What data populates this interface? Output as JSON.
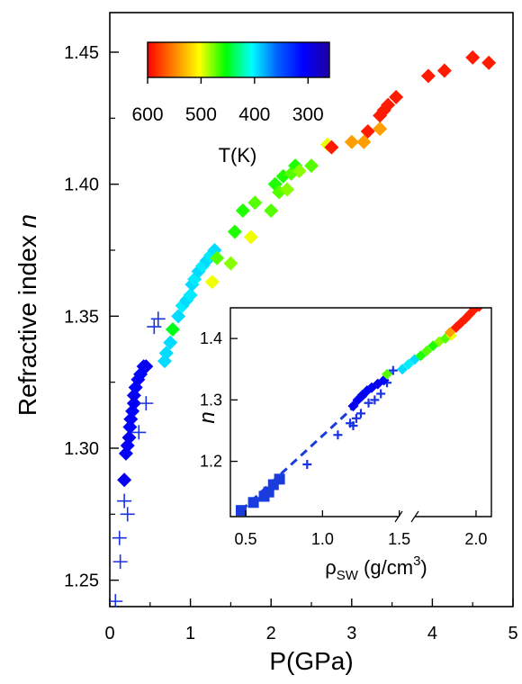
{
  "chart_data": [
    {
      "type": "scatter",
      "xlabel": "P(GPa)",
      "ylabel_main": "Refractive index ",
      "ylabel_italic": "n",
      "xlim": [
        0,
        5
      ],
      "ylim": [
        1.24,
        1.465
      ],
      "x_ticks": [
        "0",
        "1",
        "2",
        "3",
        "4",
        "5"
      ],
      "y_ticks": [
        "1.25",
        "1.30",
        "1.35",
        "1.40",
        "1.45"
      ],
      "colorbar": {
        "label": "T(K)",
        "ticks": [
          "600",
          "500",
          "400",
          "300"
        ],
        "tick_values": [
          600,
          500,
          400,
          300
        ],
        "range": [
          600,
          260
        ],
        "colors": [
          "#ff0000",
          "#ff8000",
          "#ffff00",
          "#00ff00",
          "#00ffff",
          "#0060ff",
          "#0000ff",
          "#2000a0"
        ]
      },
      "series": [
        {
          "marker": "diamond",
          "points": [
            {
              "x": 0.18,
              "y": 1.288,
              "t": 300
            },
            {
              "x": 0.2,
              "y": 1.298,
              "t": 305
            },
            {
              "x": 0.22,
              "y": 1.301,
              "t": 305
            },
            {
              "x": 0.24,
              "y": 1.304,
              "t": 300
            },
            {
              "x": 0.25,
              "y": 1.308,
              "t": 310
            },
            {
              "x": 0.26,
              "y": 1.311,
              "t": 305
            },
            {
              "x": 0.28,
              "y": 1.314,
              "t": 310
            },
            {
              "x": 0.3,
              "y": 1.317,
              "t": 305
            },
            {
              "x": 0.3,
              "y": 1.32,
              "t": 300
            },
            {
              "x": 0.32,
              "y": 1.323,
              "t": 310
            },
            {
              "x": 0.35,
              "y": 1.326,
              "t": 305
            },
            {
              "x": 0.38,
              "y": 1.328,
              "t": 310
            },
            {
              "x": 0.42,
              "y": 1.331,
              "t": 305
            },
            {
              "x": 0.45,
              "y": 1.331,
              "t": 300
            },
            {
              "x": 0.68,
              "y": 1.333,
              "t": 395
            },
            {
              "x": 0.7,
              "y": 1.336,
              "t": 395
            },
            {
              "x": 0.75,
              "y": 1.34,
              "t": 395
            },
            {
              "x": 0.78,
              "y": 1.345,
              "t": 450
            },
            {
              "x": 0.85,
              "y": 1.35,
              "t": 395
            },
            {
              "x": 0.9,
              "y": 1.354,
              "t": 400
            },
            {
              "x": 0.95,
              "y": 1.356,
              "t": 395
            },
            {
              "x": 1.0,
              "y": 1.358,
              "t": 400
            },
            {
              "x": 1.02,
              "y": 1.362,
              "t": 395
            },
            {
              "x": 1.05,
              "y": 1.364,
              "t": 400
            },
            {
              "x": 1.1,
              "y": 1.367,
              "t": 395
            },
            {
              "x": 1.15,
              "y": 1.369,
              "t": 400
            },
            {
              "x": 1.2,
              "y": 1.371,
              "t": 395
            },
            {
              "x": 1.25,
              "y": 1.373,
              "t": 400
            },
            {
              "x": 1.3,
              "y": 1.375,
              "t": 395
            },
            {
              "x": 1.27,
              "y": 1.363,
              "t": 500
            },
            {
              "x": 1.33,
              "y": 1.372,
              "t": 470
            },
            {
              "x": 1.5,
              "y": 1.37,
              "t": 480
            },
            {
              "x": 1.55,
              "y": 1.382,
              "t": 460
            },
            {
              "x": 1.65,
              "y": 1.39,
              "t": 460
            },
            {
              "x": 1.8,
              "y": 1.393,
              "t": 470
            },
            {
              "x": 1.75,
              "y": 1.38,
              "t": 500
            },
            {
              "x": 2.0,
              "y": 1.39,
              "t": 470
            },
            {
              "x": 2.05,
              "y": 1.4,
              "t": 460
            },
            {
              "x": 2.1,
              "y": 1.397,
              "t": 470
            },
            {
              "x": 2.15,
              "y": 1.403,
              "t": 460
            },
            {
              "x": 2.2,
              "y": 1.398,
              "t": 480
            },
            {
              "x": 2.25,
              "y": 1.404,
              "t": 470
            },
            {
              "x": 2.3,
              "y": 1.407,
              "t": 460
            },
            {
              "x": 2.35,
              "y": 1.405,
              "t": 480
            },
            {
              "x": 2.5,
              "y": 1.407,
              "t": 470
            },
            {
              "x": 2.7,
              "y": 1.415,
              "t": 500
            },
            {
              "x": 2.75,
              "y": 1.414,
              "t": 590
            },
            {
              "x": 3.0,
              "y": 1.416,
              "t": 540
            },
            {
              "x": 3.15,
              "y": 1.416,
              "t": 540
            },
            {
              "x": 3.35,
              "y": 1.421,
              "t": 540
            },
            {
              "x": 3.2,
              "y": 1.42,
              "t": 590
            },
            {
              "x": 3.35,
              "y": 1.426,
              "t": 590
            },
            {
              "x": 3.4,
              "y": 1.428,
              "t": 590
            },
            {
              "x": 3.45,
              "y": 1.43,
              "t": 590
            },
            {
              "x": 3.55,
              "y": 1.433,
              "t": 590
            },
            {
              "x": 3.95,
              "y": 1.441,
              "t": 590
            },
            {
              "x": 4.15,
              "y": 1.443,
              "t": 590
            },
            {
              "x": 4.5,
              "y": 1.448,
              "t": 590
            },
            {
              "x": 4.7,
              "y": 1.446,
              "t": 590
            }
          ]
        },
        {
          "marker": "plus",
          "color": "#1a32e6",
          "points": [
            {
              "x": 0.07,
              "y": 1.242
            },
            {
              "x": 0.13,
              "y": 1.257
            },
            {
              "x": 0.12,
              "y": 1.266
            },
            {
              "x": 0.22,
              "y": 1.275
            },
            {
              "x": 0.18,
              "y": 1.28
            },
            {
              "x": 0.36,
              "y": 1.306
            },
            {
              "x": 0.45,
              "y": 1.317
            },
            {
              "x": 0.55,
              "y": 1.346
            },
            {
              "x": 0.6,
              "y": 1.349
            }
          ]
        }
      ]
    },
    {
      "type": "scatter",
      "ylabel": "n",
      "xlabel_main": "ρ",
      "xlabel_sub": "SW",
      "xlabel_mid": " (g/cm",
      "xlabel_sup": "3",
      "xlabel_end": ")",
      "xlim": [
        0.4,
        2.1
      ],
      "ylim": [
        1.11,
        1.45
      ],
      "x_ticks": [
        "0.5",
        "1.0",
        "1.5",
        "2.0"
      ],
      "x_tick_values": [
        0.5,
        1.0,
        1.5,
        2.0
      ],
      "y_ticks": [
        "1.2",
        "1.3",
        "1.4"
      ],
      "y_tick_values": [
        1.2,
        1.3,
        1.4
      ],
      "axis_break": [
        1.43,
        1.5
      ],
      "fit_line": {
        "style": "dashed",
        "color": "#1a3cdc",
        "x": [
          0.47,
          1.45
        ],
        "y": [
          1.12,
          1.345
        ]
      },
      "series": [
        {
          "marker": "square",
          "color": "#1a3cdc",
          "points": [
            {
              "x": 0.47,
              "y": 1.12
            },
            {
              "x": 0.55,
              "y": 1.133
            },
            {
              "x": 0.62,
              "y": 1.143
            },
            {
              "x": 0.65,
              "y": 1.15
            },
            {
              "x": 0.68,
              "y": 1.162
            },
            {
              "x": 0.72,
              "y": 1.171
            }
          ]
        },
        {
          "marker": "plus",
          "color": "#1a32e6",
          "points": [
            {
              "x": 0.9,
              "y": 1.195
            },
            {
              "x": 1.1,
              "y": 1.243
            },
            {
              "x": 1.18,
              "y": 1.262
            },
            {
              "x": 1.2,
              "y": 1.258
            },
            {
              "x": 1.22,
              "y": 1.27
            },
            {
              "x": 1.25,
              "y": 1.278
            },
            {
              "x": 1.3,
              "y": 1.295
            },
            {
              "x": 1.34,
              "y": 1.3
            },
            {
              "x": 1.38,
              "y": 1.31
            },
            {
              "x": 1.42,
              "y": 1.328
            },
            {
              "x": 1.46,
              "y": 1.348
            }
          ]
        },
        {
          "marker": "diamond",
          "points": [
            {
              "x": 1.2,
              "y": 1.29,
              "t": 300
            },
            {
              "x": 1.23,
              "y": 1.3,
              "t": 305
            },
            {
              "x": 1.26,
              "y": 1.308,
              "t": 300
            },
            {
              "x": 1.29,
              "y": 1.315,
              "t": 310
            },
            {
              "x": 1.32,
              "y": 1.32,
              "t": 305
            },
            {
              "x": 1.36,
              "y": 1.326,
              "t": 300
            },
            {
              "x": 1.4,
              "y": 1.332,
              "t": 310
            },
            {
              "x": 1.42,
              "y": 1.342,
              "t": 470
            },
            {
              "x": 1.52,
              "y": 1.35,
              "t": 395
            },
            {
              "x": 1.56,
              "y": 1.358,
              "t": 400
            },
            {
              "x": 1.6,
              "y": 1.366,
              "t": 395
            },
            {
              "x": 1.64,
              "y": 1.372,
              "t": 460
            },
            {
              "x": 1.68,
              "y": 1.38,
              "t": 470
            },
            {
              "x": 1.72,
              "y": 1.388,
              "t": 460
            },
            {
              "x": 1.76,
              "y": 1.395,
              "t": 480
            },
            {
              "x": 1.8,
              "y": 1.4,
              "t": 470
            },
            {
              "x": 1.84,
              "y": 1.405,
              "t": 500
            },
            {
              "x": 1.83,
              "y": 1.41,
              "t": 540
            },
            {
              "x": 1.87,
              "y": 1.418,
              "t": 590
            },
            {
              "x": 1.9,
              "y": 1.425,
              "t": 590
            },
            {
              "x": 1.93,
              "y": 1.432,
              "t": 590
            },
            {
              "x": 1.96,
              "y": 1.44,
              "t": 590
            },
            {
              "x": 1.99,
              "y": 1.448,
              "t": 590
            },
            {
              "x": 2.02,
              "y": 1.452,
              "t": 590
            }
          ]
        }
      ]
    }
  ]
}
